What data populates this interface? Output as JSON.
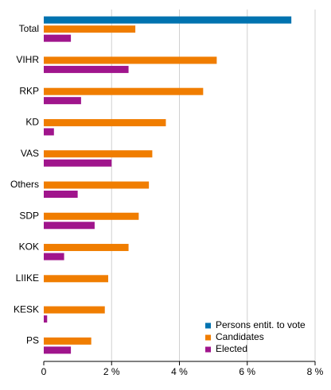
{
  "chart_data": {
    "type": "hbar",
    "categories": [
      "Total",
      "VIHR",
      "RKP",
      "KD",
      "VAS",
      "Others",
      "SDP",
      "KOK",
      "LIIKE",
      "KESK",
      "PS"
    ],
    "series": [
      {
        "name": "Persons entit. to vote",
        "color": "#0073b0",
        "values": [
          7.3,
          null,
          null,
          null,
          null,
          null,
          null,
          null,
          null,
          null,
          null
        ]
      },
      {
        "name": "Candidates",
        "color": "#f07d00",
        "values": [
          2.7,
          5.1,
          4.7,
          3.6,
          3.2,
          3.1,
          2.8,
          2.5,
          1.9,
          1.8,
          1.4
        ]
      },
      {
        "name": "Elected",
        "color": "#a0158c",
        "values": [
          0.8,
          2.5,
          1.1,
          0.3,
          2.0,
          1.0,
          1.5,
          0.6,
          0,
          0.1,
          0.8
        ]
      }
    ],
    "xlim": [
      0,
      8
    ],
    "xticks": [
      0,
      {
        "value": 2,
        "label": "2 %"
      },
      {
        "value": 4,
        "label": "4 %"
      },
      {
        "value": 6,
        "label": "6 %"
      },
      {
        "value": 8,
        "label": "8 %"
      }
    ],
    "grid": true,
    "legend": "bottom-right"
  }
}
